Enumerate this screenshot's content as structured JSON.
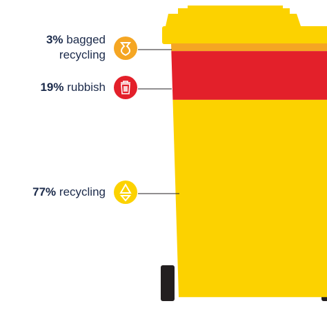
{
  "chart_data": {
    "type": "stacked-bar",
    "categories": [
      "bagged recycling",
      "rubbish",
      "recycling"
    ],
    "values": [
      3,
      19,
      77
    ],
    "value_labels": [
      "3%",
      "19%",
      "77%"
    ],
    "colors": [
      "#f5a623",
      "#e3202a",
      "#fcd200"
    ]
  }
}
